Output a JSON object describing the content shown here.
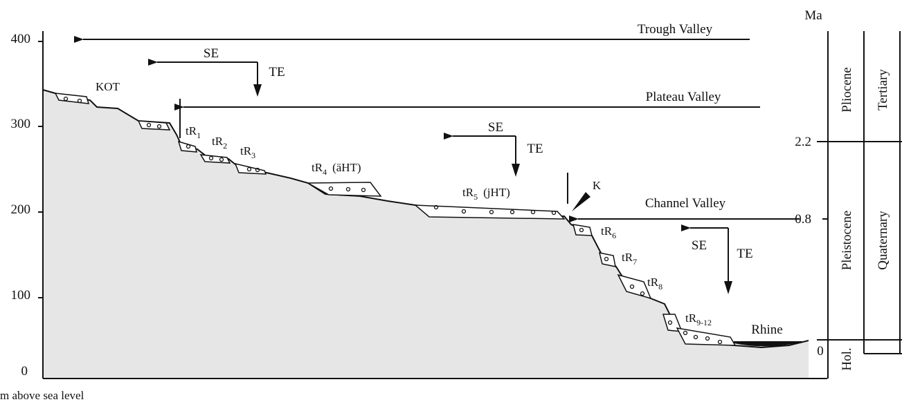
{
  "y_axis": {
    "labels": [
      "400",
      "300",
      "200",
      "100",
      "0"
    ],
    "title": "m above sea level"
  },
  "valleys": {
    "trough": "Trough Valley",
    "plateau": "Plateau Valley",
    "channel": "Channel Valley"
  },
  "movements": [
    {
      "se": "SE",
      "te": "TE"
    },
    {
      "se": "SE",
      "te": "TE"
    },
    {
      "se": "SE",
      "te": "TE"
    }
  ],
  "k": "K",
  "river": "Rhine",
  "terraces": [
    {
      "text": "KOT"
    },
    {
      "text": "tR",
      "sub": "1"
    },
    {
      "text": "tR",
      "sub": "2"
    },
    {
      "text": "tR",
      "sub": "3"
    },
    {
      "text": "tR",
      "sub": "4",
      "suffix": "(äHT)"
    },
    {
      "text": "tR",
      "sub": "5",
      "suffix": "(jHT)"
    },
    {
      "text": "tR",
      "sub": "6"
    },
    {
      "text": "tR",
      "sub": "7"
    },
    {
      "text": "tR",
      "sub": "8"
    },
    {
      "text": "tR",
      "sub": "9-12"
    }
  ],
  "timescale": {
    "unit": "Ma",
    "ticks": [
      "2.2",
      "0.8",
      "0"
    ],
    "epochs": [
      "Pliocene",
      "Pleistocene",
      "Hol."
    ],
    "periods": [
      "Tertiary",
      "Quaternary"
    ]
  }
}
